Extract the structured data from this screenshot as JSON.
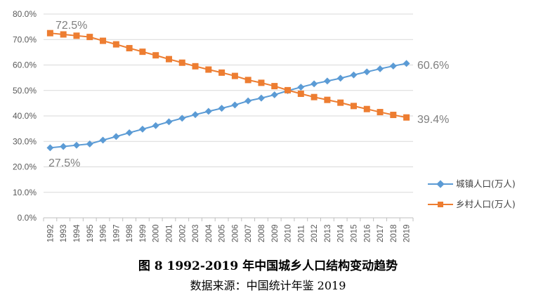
{
  "chart_data": {
    "type": "line",
    "categories": [
      "1992",
      "1993",
      "1994",
      "1995",
      "1996",
      "1997",
      "1998",
      "1999",
      "2000",
      "2001",
      "2002",
      "2003",
      "2004",
      "2005",
      "2006",
      "2007",
      "2008",
      "2009",
      "2010",
      "2011",
      "2012",
      "2013",
      "2014",
      "2015",
      "2016",
      "2017",
      "2018",
      "2019"
    ],
    "series": [
      {
        "name": "城镇人口(万人)",
        "color": "#5b9bd5",
        "marker": "diamond",
        "values": [
          27.5,
          28.0,
          28.5,
          29.0,
          30.5,
          31.9,
          33.4,
          34.8,
          36.2,
          37.7,
          39.1,
          40.5,
          41.8,
          43.0,
          44.3,
          45.9,
          47.0,
          48.3,
          49.9,
          51.3,
          52.6,
          53.7,
          54.8,
          56.1,
          57.3,
          58.5,
          59.6,
          60.6
        ]
      },
      {
        "name": "乡村人口(万人)",
        "color": "#ed7d31",
        "marker": "square",
        "values": [
          72.5,
          72.0,
          71.5,
          71.0,
          69.5,
          68.1,
          66.6,
          65.2,
          63.8,
          62.3,
          60.9,
          59.5,
          58.2,
          57.0,
          55.7,
          54.1,
          53.0,
          51.7,
          50.1,
          48.7,
          47.4,
          46.3,
          45.2,
          43.9,
          42.7,
          41.5,
          40.4,
          39.4
        ]
      }
    ],
    "yticks": [
      "0.0%",
      "10.0%",
      "20.0%",
      "30.0%",
      "40.0%",
      "50.0%",
      "60.0%",
      "70.0%",
      "80.0%"
    ],
    "ylim": [
      0,
      80
    ],
    "grid": true,
    "legend_position": "right",
    "annotations": [
      "72.5%",
      "27.5%",
      "60.6%",
      "39.4%"
    ]
  },
  "caption": "图 8 1992-2019 年中国城乡人口结构变动趋势",
  "source": "数据来源：中国统计年鉴 2019"
}
